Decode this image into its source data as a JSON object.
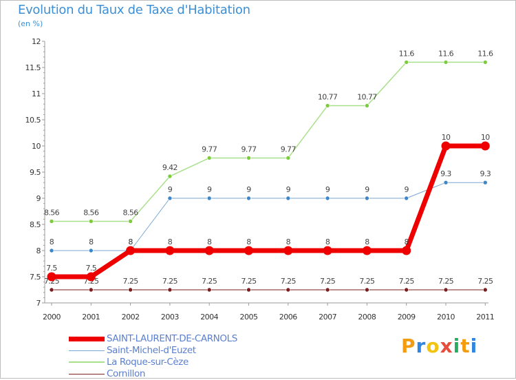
{
  "title": "Evolution du Taux de Taxe d'Habitation",
  "subtitle": "(en %)",
  "colors": {
    "title": "#3c8fd6",
    "axis": "#9a9a9a",
    "legend_text": "#5a7fd0"
  },
  "brand": {
    "letters": [
      "P",
      "r",
      "o",
      "x",
      "i",
      "t",
      "i"
    ],
    "colors": [
      "#f39c12",
      "#2e86de",
      "#f1c40f",
      "#e74c3c",
      "#27ae60",
      "#f39c12",
      "#2e86de"
    ]
  },
  "chart_data": {
    "type": "line",
    "x": [
      "2000",
      "2001",
      "2002",
      "2003",
      "2004",
      "2005",
      "2006",
      "2007",
      "2008",
      "2009",
      "2010",
      "2011"
    ],
    "ylim": [
      7,
      12
    ],
    "yticks": [
      "7",
      "7.5",
      "8",
      "8.5",
      "9",
      "9.5",
      "10",
      "10.5",
      "11",
      "11.5",
      "12"
    ],
    "grid": false,
    "legend_position": "bottom-left",
    "series": [
      {
        "name": "Cornillon",
        "color": "#7a1f1f",
        "marker": "#7a1f1f",
        "width": 1,
        "values": [
          7.25,
          7.25,
          7.25,
          7.25,
          7.25,
          7.25,
          7.25,
          7.25,
          7.25,
          7.25,
          7.25,
          7.25
        ],
        "labels": [
          "7.25",
          "7.25",
          "7.25",
          "7.25",
          "7.25",
          "7.25",
          "7.25",
          "7.25",
          "7.25",
          "7.25",
          "7.25",
          "7.25"
        ]
      },
      {
        "name": "La Roque-sur-Cèze",
        "color": "#a8e08a",
        "marker": "#7dcc3e",
        "width": 1.5,
        "values": [
          8.56,
          8.56,
          8.56,
          9.42,
          9.77,
          9.77,
          9.77,
          10.77,
          10.77,
          11.6,
          11.6,
          11.6
        ],
        "labels": [
          "8.56",
          "8.56",
          "8.56",
          "9.42",
          "9.77",
          "9.77",
          "9.77",
          "10.77",
          "10.77",
          "11.6",
          "11.6",
          "11.6"
        ]
      },
      {
        "name": "Saint-Michel-d'Euzet",
        "color": "#7aa6d4",
        "marker": "#3f86c7",
        "width": 1,
        "values": [
          8,
          8,
          8,
          9,
          9,
          9,
          9,
          9,
          9,
          9,
          9.3,
          9.3
        ],
        "labels": [
          "8",
          "8",
          "8",
          "9",
          "9",
          "9",
          "9",
          "9",
          "9",
          "9",
          "9.3",
          "9.3"
        ]
      },
      {
        "name": "SAINT-LAURENT-DE-CARNOLS",
        "color": "#ee0000",
        "marker": "#ee0000",
        "width": 7,
        "values": [
          7.5,
          7.5,
          8,
          8,
          8,
          8,
          8,
          8,
          8,
          8,
          10,
          10
        ],
        "labels": [
          "7.5",
          "7.5",
          "8",
          "8",
          "8",
          "8",
          "8",
          "8",
          "8",
          "8",
          "10",
          "10"
        ]
      }
    ],
    "legend_order": [
      "SAINT-LAURENT-DE-CARNOLS",
      "Saint-Michel-d'Euzet",
      "La Roque-sur-Cèze",
      "Cornillon"
    ]
  }
}
